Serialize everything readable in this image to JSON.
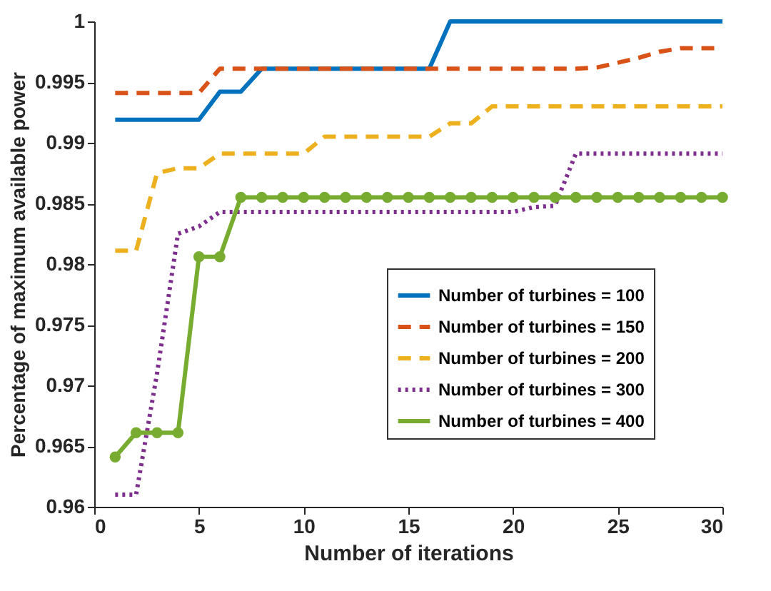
{
  "chart_data": {
    "type": "line",
    "xlabel": "Number of iterations",
    "ylabel": "Percentage of maximum available power",
    "x": [
      1,
      2,
      3,
      4,
      5,
      6,
      7,
      8,
      9,
      10,
      11,
      12,
      13,
      14,
      15,
      16,
      17,
      18,
      19,
      20,
      21,
      22,
      23,
      24,
      25,
      26,
      27,
      28,
      29,
      30
    ],
    "series": [
      {
        "name": "Number of turbines = 100",
        "color": "#0072bd",
        "line_style": "solid",
        "values": [
          0.9919,
          0.9919,
          0.9919,
          0.9919,
          0.9919,
          0.9942,
          0.9942,
          0.9961,
          0.9961,
          0.9961,
          0.9961,
          0.9961,
          0.9961,
          0.9961,
          0.9961,
          0.9961,
          1,
          1,
          1,
          1,
          1,
          1,
          1,
          1,
          1,
          1,
          1,
          1,
          1,
          1
        ]
      },
      {
        "name": "Number of turbines = 150",
        "color": "#d95319",
        "line_style": "dashed",
        "values": [
          0.9941,
          0.9941,
          0.9941,
          0.9941,
          0.9941,
          0.9961,
          0.9961,
          0.9961,
          0.9961,
          0.9961,
          0.9961,
          0.9961,
          0.9961,
          0.9961,
          0.9961,
          0.9961,
          0.9961,
          0.9961,
          0.9961,
          0.9961,
          0.9961,
          0.9961,
          0.9961,
          0.9962,
          0.9966,
          0.997,
          0.9975,
          0.9978,
          0.9978,
          0.9978
        ]
      },
      {
        "name": "Number of turbines = 200",
        "color": "#edb120",
        "line_style": "dashed",
        "values": [
          0.9811,
          0.9811,
          0.9875,
          0.9879,
          0.9879,
          0.9891,
          0.9891,
          0.9891,
          0.9891,
          0.9891,
          0.9905,
          0.9905,
          0.9905,
          0.9905,
          0.9905,
          0.9905,
          0.9916,
          0.9916,
          0.993,
          0.993,
          0.993,
          0.993,
          0.993,
          0.993,
          0.993,
          0.993,
          0.993,
          0.993,
          0.993,
          0.993
        ]
      },
      {
        "name": "Number of turbines = 300",
        "color": "#7e2f8e",
        "line_style": "dotted",
        "values": [
          0.961,
          0.961,
          0.971,
          0.9825,
          0.9831,
          0.9843,
          0.9843,
          0.9843,
          0.9843,
          0.9843,
          0.9843,
          0.9843,
          0.9843,
          0.9843,
          0.9843,
          0.9843,
          0.9843,
          0.9843,
          0.9843,
          0.9843,
          0.9847,
          0.9848,
          0.9891,
          0.9891,
          0.9891,
          0.9891,
          0.9891,
          0.9891,
          0.9891,
          0.9891
        ]
      },
      {
        "name": "Number of turbines = 400",
        "color": "#77ac30",
        "line_style": "solid",
        "marker": "circle",
        "values": [
          0.9641,
          0.9661,
          0.9661,
          0.9661,
          0.9806,
          0.9806,
          0.9855,
          0.9855,
          0.9855,
          0.9855,
          0.9855,
          0.9855,
          0.9855,
          0.9855,
          0.9855,
          0.9855,
          0.9855,
          0.9855,
          0.9855,
          0.9855,
          0.9855,
          0.9855,
          0.9855,
          0.9855,
          0.9855,
          0.9855,
          0.9855,
          0.9855,
          0.9855,
          0.9855
        ]
      }
    ],
    "xlim": [
      0,
      30
    ],
    "xticks": [
      0,
      5,
      10,
      15,
      20,
      25,
      30
    ],
    "ylim": [
      0.96,
      1
    ],
    "yticks": [
      0.96,
      0.965,
      0.97,
      0.975,
      0.98,
      0.985,
      0.99,
      0.995,
      1
    ],
    "grid": false,
    "legend": "bottom right"
  }
}
